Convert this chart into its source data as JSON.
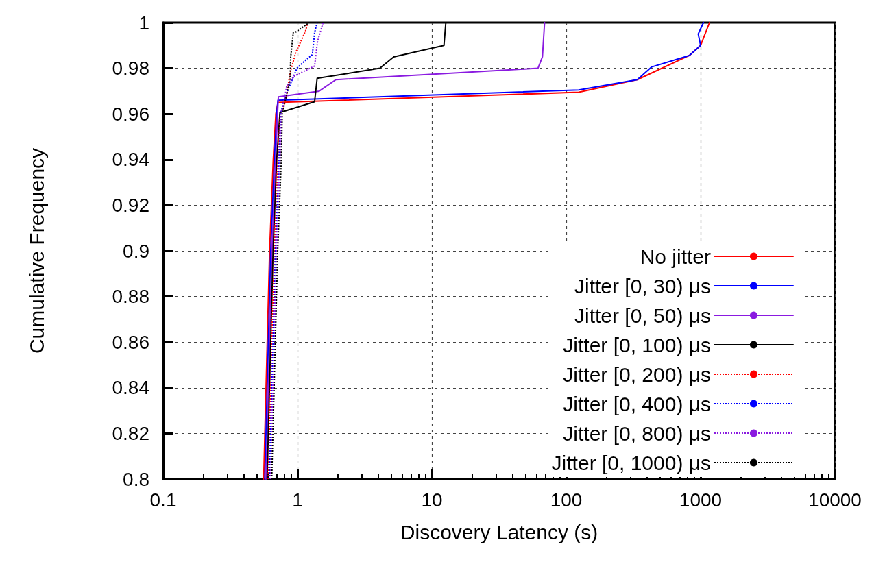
{
  "chart_data": {
    "type": "line",
    "xlabel": "Discovery Latency (s)",
    "ylabel": "Cumulative Frequency",
    "log": "x",
    "xlim": [
      0.1,
      10000
    ],
    "xticks": [
      0.1,
      1,
      10,
      100,
      1000,
      10000
    ],
    "ylim": [
      0.8,
      1
    ],
    "yticks": [
      0.8,
      0.82,
      0.84,
      0.86,
      0.88,
      0.9,
      0.92,
      0.94,
      0.96,
      0.98,
      1
    ],
    "grid": true,
    "legend": "bottom right",
    "marker": "none",
    "series": [
      {
        "name": "No jitter",
        "color": "#ff0000",
        "line_style": "solid",
        "x": [
          0.56,
          0.62,
          0.66,
          0.69,
          0.715,
          124,
          338,
          824,
          1000,
          1165
        ],
        "values": [
          0.8,
          0.9,
          0.94,
          0.96,
          0.965,
          0.9695,
          0.975,
          0.9856,
          0.99,
          1
        ]
      },
      {
        "name": "Jitter [0, 30) μs",
        "color": "#0000ff",
        "line_style": "solid",
        "x": [
          0.571,
          0.632,
          0.673,
          0.7,
          0.715,
          124,
          338,
          433,
          824,
          1000,
          960,
          1050
        ],
        "values": [
          0.8,
          0.9,
          0.94,
          0.96,
          0.966,
          0.9705,
          0.975,
          0.9806,
          0.9856,
          0.99,
          0.995,
          1
        ]
      },
      {
        "name": "Jitter [0, 50) μs",
        "color": "#8a1ae0",
        "line_style": "solid",
        "x": [
          0.583,
          0.645,
          0.687,
          0.71,
          0.72,
          1.45,
          1.93,
          61.6,
          66.5,
          69
        ],
        "values": [
          0.8,
          0.9,
          0.94,
          0.96,
          0.9675,
          0.97,
          0.975,
          0.98,
          0.985,
          1
        ]
      },
      {
        "name": "Jitter [0, 100) μs",
        "color": "#000000",
        "line_style": "solid",
        "x": [
          0.594,
          0.658,
          0.7,
          0.74,
          1.34,
          1.4,
          4.1,
          5.2,
          12.3,
          12.7
        ],
        "values": [
          0.8,
          0.9,
          0.94,
          0.9606,
          0.9653,
          0.9756,
          0.98,
          0.985,
          0.99,
          1
        ]
      },
      {
        "name": "Jitter [0, 200) μs",
        "color": "#ff0000",
        "line_style": "dotted",
        "x": [
          0.606,
          0.671,
          0.714,
          0.745,
          0.82,
          0.87,
          0.9,
          0.97,
          1.02,
          1.15,
          1.19
        ],
        "values": [
          0.8,
          0.9,
          0.94,
          0.96,
          0.966,
          0.976,
          0.98,
          0.987,
          0.9897,
          0.9965,
          1
        ]
      },
      {
        "name": "Jitter [0, 400) μs",
        "color": "#0000ff",
        "line_style": "dotted",
        "x": [
          0.618,
          0.685,
          0.729,
          0.75,
          0.79,
          0.99,
          1.12,
          1.29,
          1.34,
          1.4
        ],
        "values": [
          0.8,
          0.9,
          0.94,
          0.96,
          0.966,
          0.98,
          0.983,
          0.986,
          0.9956,
          1
        ]
      },
      {
        "name": "Jitter [0, 800) μs",
        "color": "#8a1ae0",
        "line_style": "dotted",
        "x": [
          0.631,
          0.698,
          0.743,
          0.76,
          0.78,
          0.83,
          0.94,
          1.34,
          1.41,
          1.55
        ],
        "values": [
          0.8,
          0.9,
          0.94,
          0.96,
          0.963,
          0.972,
          0.9765,
          0.981,
          0.9918,
          1
        ]
      },
      {
        "name": "Jitter [0, 1000) μs",
        "color": "#000000",
        "line_style": "dotted",
        "x": [
          0.643,
          0.712,
          0.758,
          0.77,
          0.88,
          0.89,
          0.93,
          0.98,
          1.22
        ],
        "values": [
          0.8,
          0.9,
          0.94,
          0.96,
          0.975,
          0.985,
          0.9956,
          0.996,
          1
        ]
      }
    ]
  }
}
